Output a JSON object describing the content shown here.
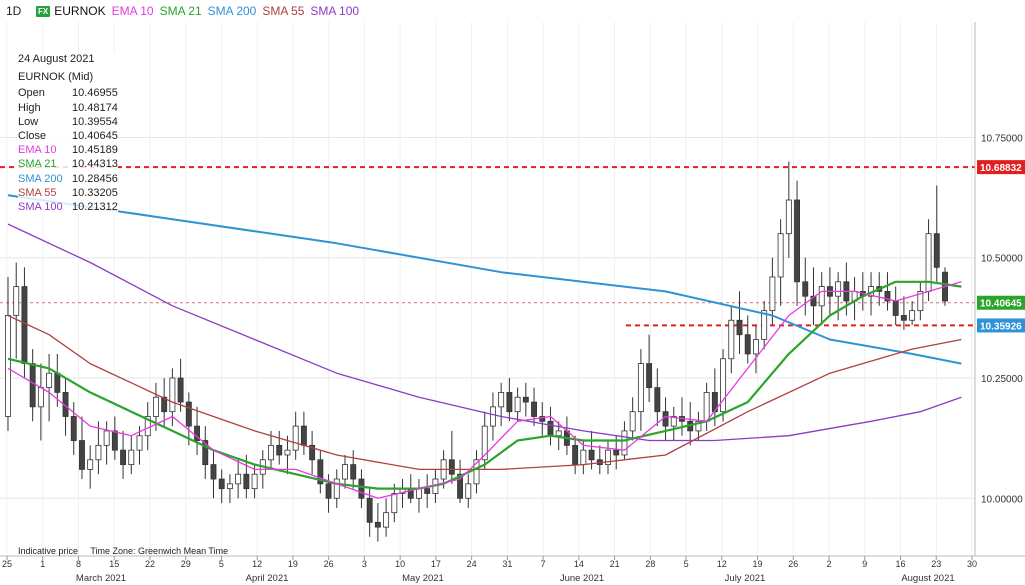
{
  "toolbar": {
    "timeframe": "1D",
    "badge": "FX",
    "symbol": "EURNOK",
    "indicators": [
      {
        "label": "EMA 10",
        "color": "#e83ae0"
      },
      {
        "label": "SMA 21",
        "color": "#2aa42a"
      },
      {
        "label": "SMA 200",
        "color": "#2d93d6"
      },
      {
        "label": "SMA 55",
        "color": "#b04040"
      },
      {
        "label": "SMA 100",
        "color": "#8a3cc4"
      }
    ]
  },
  "info": {
    "date": "24 August 2021",
    "instrument": "EURNOK (Mid)",
    "rows": [
      {
        "label": "Open",
        "value": "10.46955",
        "color": "#222222"
      },
      {
        "label": "High",
        "value": "10.48174",
        "color": "#222222"
      },
      {
        "label": "Low",
        "value": "10.39554",
        "color": "#222222"
      },
      {
        "label": "Close",
        "value": "10.40645",
        "color": "#222222"
      },
      {
        "label": "EMA 10",
        "value": "10.45189",
        "color": "#e83ae0"
      },
      {
        "label": "SMA 21",
        "value": "10.44313",
        "color": "#2aa42a"
      },
      {
        "label": "SMA 200",
        "value": "10.28456",
        "color": "#2d93d6"
      },
      {
        "label": "SMA 55",
        "value": "10.33205",
        "color": "#b04040"
      },
      {
        "label": "SMA 100",
        "value": "10.21312",
        "color": "#8a3cc4"
      }
    ]
  },
  "footer": {
    "indicative": "Indicative price",
    "timezone": "Time Zone: Greenwich Mean Time"
  },
  "chart_data": {
    "type": "candlestick",
    "y_ticks": [
      "10.75000",
      "10.50000",
      "10.25000",
      "10.00000"
    ],
    "y_tick_values": [
      10.75,
      10.5,
      10.25,
      10.0
    ],
    "ylim": [
      9.88,
      10.99
    ],
    "x_day_ticks": [
      "25",
      "1",
      "8",
      "15",
      "22",
      "29",
      "5",
      "12",
      "19",
      "26",
      "3",
      "10",
      "17",
      "24",
      "31",
      "7",
      "14",
      "21",
      "28",
      "5",
      "12",
      "19",
      "26",
      "2",
      "9",
      "16",
      "23",
      "30"
    ],
    "x_month_labels": [
      "March 2021",
      "April 2021",
      "May 2021",
      "June 2021",
      "July 2021",
      "August 2021"
    ],
    "price_tags": [
      {
        "value": 10.68832,
        "label": "10.68832",
        "color": "#e02020"
      },
      {
        "value": 10.40645,
        "label": "10.40645",
        "color": "#2aa42a"
      },
      {
        "value": 10.35926,
        "label": "10.35926",
        "color": "#2d93d6"
      }
    ],
    "horizontal_lines": [
      {
        "value": 10.68832,
        "style": "dashed",
        "color": "#e02020",
        "from_index": 0
      },
      {
        "value": 10.35926,
        "style": "dashed",
        "color": "#e02020",
        "from_index": 91
      },
      {
        "value": 10.40645,
        "style": "thin-dashed",
        "color": "#c04040",
        "from_index": 0
      }
    ],
    "candles": [
      [
        10.17,
        10.46,
        10.14,
        10.38
      ],
      [
        10.38,
        10.49,
        10.29,
        10.44
      ],
      [
        10.44,
        10.48,
        10.25,
        10.28
      ],
      [
        10.28,
        10.31,
        10.16,
        10.19
      ],
      [
        10.19,
        10.28,
        10.12,
        10.23
      ],
      [
        10.23,
        10.3,
        10.16,
        10.26
      ],
      [
        10.26,
        10.3,
        10.19,
        10.22
      ],
      [
        10.22,
        10.25,
        10.13,
        10.17
      ],
      [
        10.17,
        10.2,
        10.09,
        10.12
      ],
      [
        10.12,
        10.17,
        10.04,
        10.06
      ],
      [
        10.06,
        10.11,
        10.02,
        10.08
      ],
      [
        10.08,
        10.16,
        10.05,
        10.11
      ],
      [
        10.11,
        10.16,
        10.07,
        10.14
      ],
      [
        10.14,
        10.17,
        10.08,
        10.1
      ],
      [
        10.1,
        10.14,
        10.04,
        10.07
      ],
      [
        10.07,
        10.13,
        10.05,
        10.1
      ],
      [
        10.1,
        10.15,
        10.07,
        10.13
      ],
      [
        10.13,
        10.2,
        10.1,
        10.17
      ],
      [
        10.17,
        10.24,
        10.14,
        10.21
      ],
      [
        10.21,
        10.25,
        10.15,
        10.18
      ],
      [
        10.18,
        10.27,
        10.15,
        10.25
      ],
      [
        10.25,
        10.29,
        10.18,
        10.2
      ],
      [
        10.2,
        10.22,
        10.11,
        10.15
      ],
      [
        10.15,
        10.19,
        10.09,
        10.12
      ],
      [
        10.12,
        10.15,
        10.04,
        10.07
      ],
      [
        10.07,
        10.1,
        10.0,
        10.04
      ],
      [
        10.04,
        10.06,
        9.99,
        10.02
      ],
      [
        10.02,
        10.05,
        9.99,
        10.03
      ],
      [
        10.03,
        10.08,
        10.0,
        10.05
      ],
      [
        10.05,
        10.09,
        10.0,
        10.02
      ],
      [
        10.02,
        10.07,
        10.0,
        10.05
      ],
      [
        10.05,
        10.1,
        10.02,
        10.08
      ],
      [
        10.08,
        10.14,
        10.06,
        10.11
      ],
      [
        10.11,
        10.14,
        10.07,
        10.09
      ],
      [
        10.09,
        10.13,
        10.05,
        10.1
      ],
      [
        10.1,
        10.18,
        10.08,
        10.15
      ],
      [
        10.15,
        10.18,
        10.09,
        10.11
      ],
      [
        10.11,
        10.14,
        10.05,
        10.08
      ],
      [
        10.08,
        10.1,
        10.01,
        10.03
      ],
      [
        10.03,
        10.05,
        9.97,
        10.0
      ],
      [
        10.0,
        10.06,
        9.98,
        10.04
      ],
      [
        10.04,
        10.09,
        10.02,
        10.07
      ],
      [
        10.07,
        10.1,
        10.02,
        10.04
      ],
      [
        10.04,
        10.06,
        9.98,
        10.0
      ],
      [
        10.0,
        10.02,
        9.92,
        9.95
      ],
      [
        9.95,
        9.99,
        9.91,
        9.94
      ],
      [
        9.94,
        10.0,
        9.92,
        9.97
      ],
      [
        9.97,
        10.03,
        9.95,
        10.01
      ],
      [
        10.01,
        10.04,
        9.98,
        10.02
      ],
      [
        10.02,
        10.05,
        9.99,
        10.0
      ],
      [
        10.0,
        10.04,
        9.97,
        10.02
      ],
      [
        10.02,
        10.05,
        9.98,
        10.01
      ],
      [
        10.01,
        10.06,
        9.99,
        10.04
      ],
      [
        10.04,
        10.1,
        10.02,
        10.08
      ],
      [
        10.08,
        10.14,
        10.03,
        10.05
      ],
      [
        10.05,
        10.08,
        9.99,
        10.0
      ],
      [
        10.0,
        10.05,
        9.98,
        10.03
      ],
      [
        10.03,
        10.1,
        10.01,
        10.08
      ],
      [
        10.08,
        10.18,
        10.06,
        10.15
      ],
      [
        10.15,
        10.22,
        10.12,
        10.19
      ],
      [
        10.19,
        10.24,
        10.15,
        10.22
      ],
      [
        10.22,
        10.25,
        10.16,
        10.18
      ],
      [
        10.18,
        10.23,
        10.16,
        10.21
      ],
      [
        10.21,
        10.24,
        10.17,
        10.2
      ],
      [
        10.2,
        10.23,
        10.15,
        10.17
      ],
      [
        10.17,
        10.2,
        10.13,
        10.16
      ],
      [
        10.16,
        10.19,
        10.11,
        10.13
      ],
      [
        10.13,
        10.16,
        10.1,
        10.14
      ],
      [
        10.14,
        10.17,
        10.09,
        10.11
      ],
      [
        10.11,
        10.13,
        10.05,
        10.07
      ],
      [
        10.07,
        10.12,
        10.05,
        10.1
      ],
      [
        10.1,
        10.14,
        10.06,
        10.08
      ],
      [
        10.08,
        10.11,
        10.05,
        10.07
      ],
      [
        10.07,
        10.12,
        10.05,
        10.1
      ],
      [
        10.1,
        10.13,
        10.06,
        10.09
      ],
      [
        10.09,
        10.16,
        10.08,
        10.14
      ],
      [
        10.14,
        10.21,
        10.12,
        10.18
      ],
      [
        10.18,
        10.31,
        10.14,
        10.28
      ],
      [
        10.28,
        10.34,
        10.2,
        10.23
      ],
      [
        10.23,
        10.27,
        10.15,
        10.18
      ],
      [
        10.18,
        10.21,
        10.12,
        10.15
      ],
      [
        10.15,
        10.19,
        10.12,
        10.17
      ],
      [
        10.17,
        10.21,
        10.13,
        10.16
      ],
      [
        10.16,
        10.2,
        10.11,
        10.14
      ],
      [
        10.14,
        10.18,
        10.12,
        10.16
      ],
      [
        10.16,
        10.24,
        10.14,
        10.22
      ],
      [
        10.22,
        10.27,
        10.15,
        10.18
      ],
      [
        10.18,
        10.31,
        10.16,
        10.29
      ],
      [
        10.29,
        10.4,
        10.26,
        10.37
      ],
      [
        10.37,
        10.43,
        10.3,
        10.34
      ],
      [
        10.34,
        10.38,
        10.28,
        10.3
      ],
      [
        10.3,
        10.36,
        10.26,
        10.33
      ],
      [
        10.33,
        10.41,
        10.31,
        10.39
      ],
      [
        10.39,
        10.5,
        10.36,
        10.46
      ],
      [
        10.46,
        10.58,
        10.4,
        10.55
      ],
      [
        10.55,
        10.7,
        10.5,
        10.62
      ],
      [
        10.62,
        10.66,
        10.4,
        10.45
      ],
      [
        10.45,
        10.5,
        10.38,
        10.42
      ],
      [
        10.42,
        10.48,
        10.36,
        10.4
      ],
      [
        10.4,
        10.47,
        10.36,
        10.44
      ],
      [
        10.44,
        10.48,
        10.38,
        10.42
      ],
      [
        10.42,
        10.47,
        10.37,
        10.45
      ],
      [
        10.45,
        10.49,
        10.38,
        10.41
      ],
      [
        10.41,
        10.46,
        10.37,
        10.43
      ],
      [
        10.43,
        10.47,
        10.39,
        10.42
      ],
      [
        10.42,
        10.47,
        10.38,
        10.44
      ],
      [
        10.44,
        10.47,
        10.4,
        10.43
      ],
      [
        10.43,
        10.47,
        10.39,
        10.41
      ],
      [
        10.41,
        10.44,
        10.36,
        10.38
      ],
      [
        10.38,
        10.42,
        10.35,
        10.37
      ],
      [
        10.37,
        10.41,
        10.36,
        10.39
      ],
      [
        10.39,
        10.45,
        10.37,
        10.43
      ],
      [
        10.43,
        10.58,
        10.41,
        10.55
      ],
      [
        10.55,
        10.65,
        10.45,
        10.48
      ],
      [
        10.47,
        10.48,
        10.4,
        10.41
      ]
    ],
    "series": [
      {
        "name": "SMA 200",
        "color": "#2d93d6",
        "points": [
          [
            0,
            10.63
          ],
          [
            20,
            10.58
          ],
          [
            40,
            10.53
          ],
          [
            60,
            10.47
          ],
          [
            80,
            10.43
          ],
          [
            93,
            10.38
          ],
          [
            100,
            10.33
          ],
          [
            110,
            10.3
          ],
          [
            116,
            10.28
          ]
        ]
      },
      {
        "name": "SMA 100",
        "color": "#8a3cc4",
        "points": [
          [
            0,
            10.57
          ],
          [
            10,
            10.49
          ],
          [
            20,
            10.4
          ],
          [
            30,
            10.33
          ],
          [
            40,
            10.26
          ],
          [
            50,
            10.21
          ],
          [
            60,
            10.17
          ],
          [
            70,
            10.14
          ],
          [
            78,
            10.12
          ],
          [
            86,
            10.12
          ],
          [
            95,
            10.13
          ],
          [
            105,
            10.16
          ],
          [
            111,
            10.18
          ],
          [
            116,
            10.21
          ]
        ]
      },
      {
        "name": "SMA 55",
        "color": "#b04040",
        "points": [
          [
            0,
            10.38
          ],
          [
            5,
            10.34
          ],
          [
            10,
            10.28
          ],
          [
            20,
            10.2
          ],
          [
            30,
            10.14
          ],
          [
            40,
            10.09
          ],
          [
            50,
            10.06
          ],
          [
            60,
            10.06
          ],
          [
            70,
            10.07
          ],
          [
            80,
            10.09
          ],
          [
            90,
            10.18
          ],
          [
            100,
            10.26
          ],
          [
            110,
            10.31
          ],
          [
            116,
            10.33
          ]
        ]
      },
      {
        "name": "SMA 21",
        "color": "#2aa42a",
        "points": [
          [
            0,
            10.29
          ],
          [
            5,
            10.27
          ],
          [
            10,
            10.22
          ],
          [
            15,
            10.18
          ],
          [
            20,
            10.14
          ],
          [
            25,
            10.1
          ],
          [
            30,
            10.07
          ],
          [
            35,
            10.05
          ],
          [
            40,
            10.03
          ],
          [
            45,
            10.02
          ],
          [
            50,
            10.02
          ],
          [
            53,
            10.03
          ],
          [
            58,
            10.07
          ],
          [
            62,
            10.12
          ],
          [
            66,
            10.13
          ],
          [
            70,
            10.12
          ],
          [
            75,
            10.12
          ],
          [
            80,
            10.14
          ],
          [
            85,
            10.16
          ],
          [
            90,
            10.2
          ],
          [
            95,
            10.3
          ],
          [
            100,
            10.38
          ],
          [
            104,
            10.42
          ],
          [
            108,
            10.45
          ],
          [
            112,
            10.45
          ],
          [
            116,
            10.44
          ]
        ]
      },
      {
        "name": "EMA 10",
        "color": "#e83ae0",
        "points": [
          [
            0,
            10.27
          ],
          [
            5,
            10.22
          ],
          [
            10,
            10.15
          ],
          [
            15,
            10.13
          ],
          [
            20,
            10.17
          ],
          [
            25,
            10.1
          ],
          [
            30,
            10.06
          ],
          [
            35,
            10.06
          ],
          [
            40,
            10.03
          ],
          [
            45,
            10.0
          ],
          [
            50,
            10.02
          ],
          [
            55,
            10.04
          ],
          [
            58,
            10.09
          ],
          [
            62,
            10.16
          ],
          [
            66,
            10.17
          ],
          [
            70,
            10.11
          ],
          [
            75,
            10.1
          ],
          [
            80,
            10.17
          ],
          [
            85,
            10.16
          ],
          [
            90,
            10.27
          ],
          [
            95,
            10.38
          ],
          [
            99,
            10.43
          ],
          [
            103,
            10.43
          ],
          [
            108,
            10.41
          ],
          [
            112,
            10.43
          ],
          [
            116,
            10.45
          ]
        ]
      }
    ]
  }
}
